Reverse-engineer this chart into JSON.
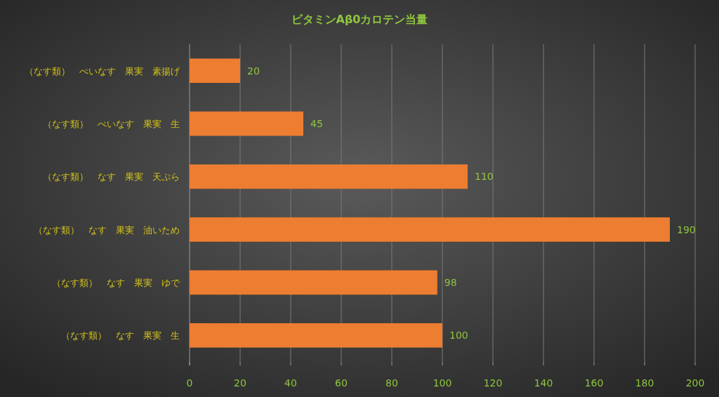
{
  "chart_data": {
    "type": "bar",
    "orientation": "horizontal",
    "title": "ビタミンAβ0カロテン当量",
    "categories": [
      "（なす類）　ぺいなす　果実　素揚げ",
      "（なす類）　ぺいなす　果実　生",
      "（なす類）　なす　果実　天ぷら",
      "（なす類）　なす　果実　油いため",
      "（なす類）　なす　果実　ゆで",
      "（なす類）　なす　果実　生"
    ],
    "values": [
      20,
      45,
      110,
      190,
      98,
      100
    ],
    "color": "#ed7d31",
    "xlim": [
      0,
      200
    ],
    "xticks": [
      0,
      20,
      40,
      60,
      80,
      100,
      120,
      140,
      160,
      180,
      200
    ],
    "grid": "x",
    "data_labels": true
  }
}
